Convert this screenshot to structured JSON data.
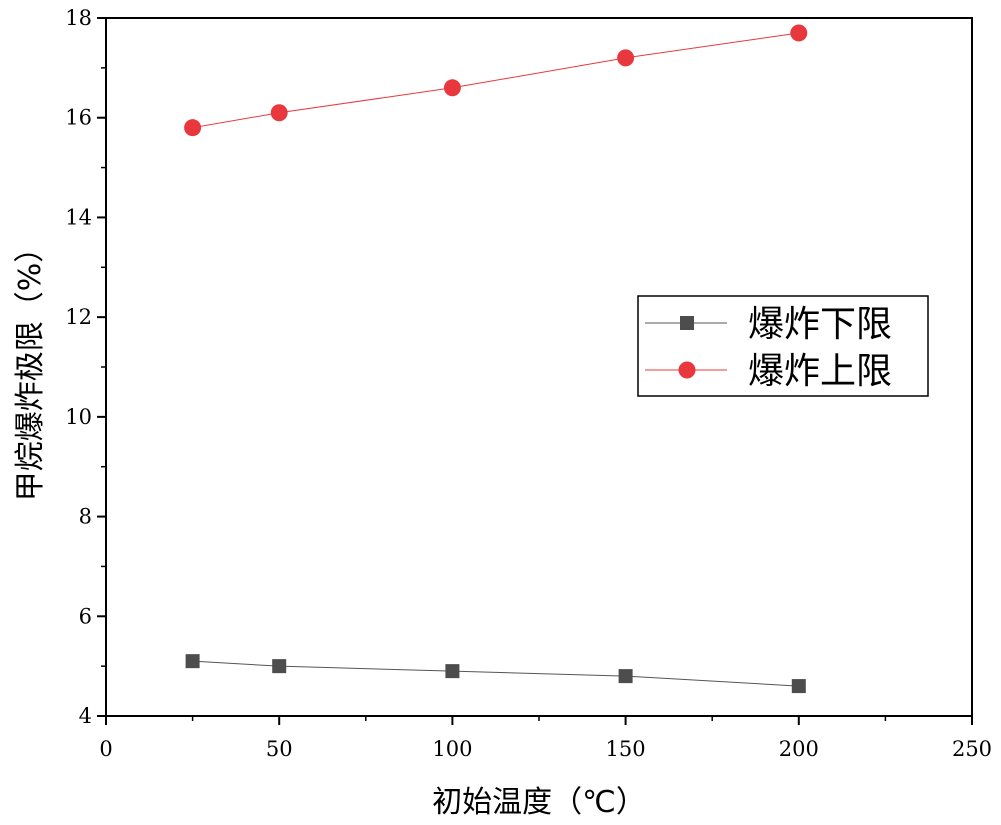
{
  "chart_data": {
    "type": "line",
    "xlabel": "初始温度（℃）",
    "ylabel": "甲烷爆炸极限（%）",
    "xlim": [
      0,
      250
    ],
    "ylim": [
      4,
      18
    ],
    "x_ticks": [
      "0",
      "50",
      "100",
      "150",
      "200",
      "250"
    ],
    "y_ticks": [
      "4",
      "6",
      "8",
      "10",
      "12",
      "14",
      "16",
      "18"
    ],
    "x": [
      25,
      50,
      100,
      150,
      200
    ],
    "series": [
      {
        "name": "爆炸下限",
        "marker": "square",
        "color": "#4d4d4d",
        "line_color": "#555555",
        "values": [
          5.1,
          5.0,
          4.9,
          4.8,
          4.6
        ]
      },
      {
        "name": "爆炸上限",
        "marker": "circle",
        "color": "#e8383d",
        "line_color": "#e8383d",
        "values": [
          15.8,
          16.1,
          16.6,
          17.2,
          17.7
        ]
      }
    ],
    "legend_position": "right",
    "grid": false
  }
}
